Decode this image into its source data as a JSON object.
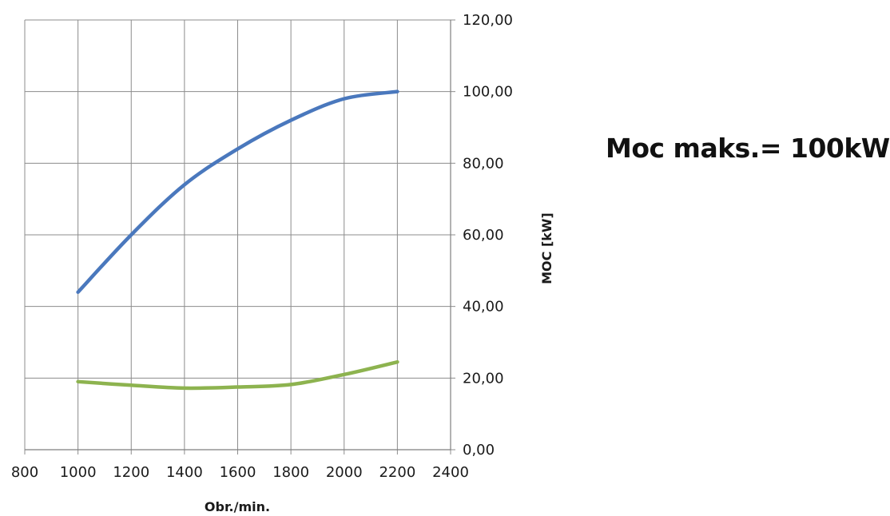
{
  "chart_data": {
    "type": "line",
    "title": "",
    "xlabel": "Obr./min.",
    "ylabel": "MOC [kW]",
    "xlim": [
      800,
      2400
    ],
    "ylim": [
      0,
      120
    ],
    "x_ticks": [
      "800",
      "1000",
      "1200",
      "1400",
      "1600",
      "1800",
      "2000",
      "2200",
      "2400"
    ],
    "y_ticks": [
      "0,00",
      "20,00",
      "40,00",
      "60,00",
      "80,00",
      "100,00",
      "120,00"
    ],
    "y_axis_position": "right",
    "grid": true,
    "legend": "none",
    "x": [
      1000,
      1200,
      1400,
      1600,
      1800,
      2000,
      2200
    ],
    "series": [
      {
        "values": [
          44,
          60,
          74,
          84,
          92,
          98,
          100
        ],
        "color": "#4a78bd"
      },
      {
        "values": [
          19,
          18,
          17.2,
          17.5,
          18.2,
          21,
          24.5
        ],
        "color": "#8db34f"
      }
    ],
    "annotation": "Moc maks.= 100kW"
  }
}
